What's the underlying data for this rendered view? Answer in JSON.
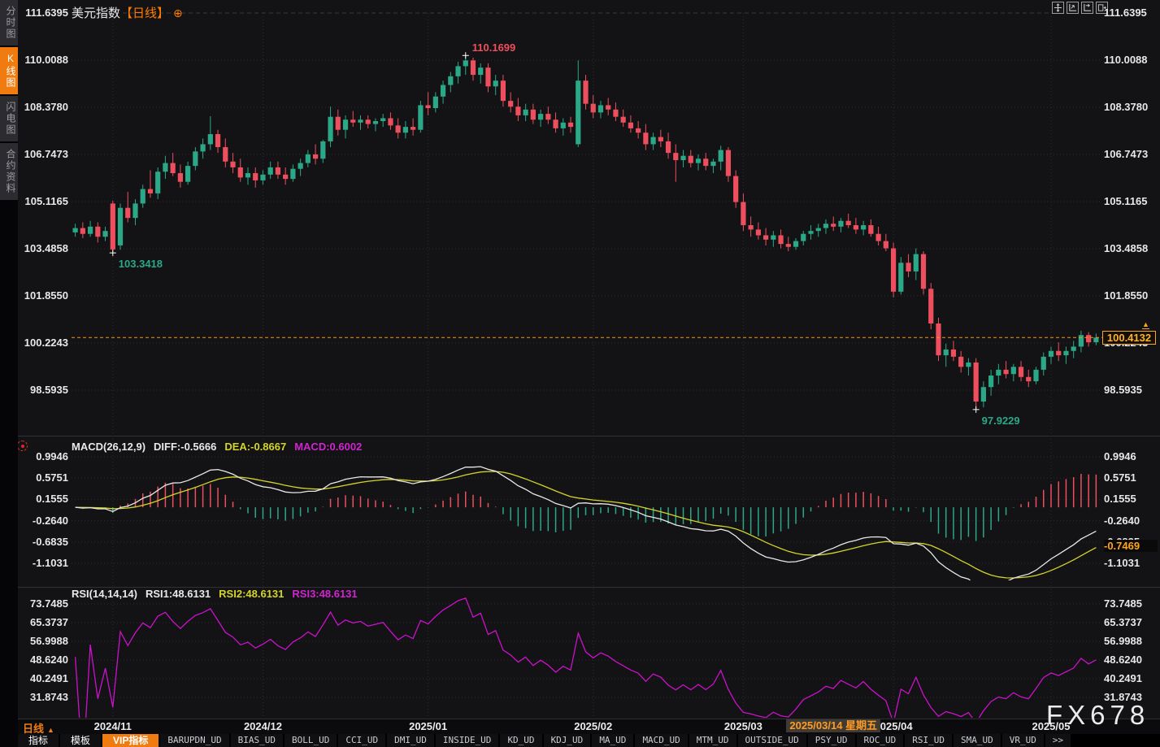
{
  "title": {
    "symbol": "美元指数",
    "period_tag": "【日线】",
    "add_icon": "⊕"
  },
  "sidebar": {
    "items": [
      {
        "label": "分时图"
      },
      {
        "label": "K线图"
      },
      {
        "label": "闪电图"
      },
      {
        "label": "合约资料"
      }
    ],
    "active": "K线图"
  },
  "price_axis": {
    "labels": [
      "111.6395",
      "110.0088",
      "108.3780",
      "106.7473",
      "105.1165",
      "103.4858",
      "101.8550",
      "100.2243",
      "98.5935"
    ]
  },
  "price_tag": {
    "value": "100.4132"
  },
  "annotations": {
    "high": "110.1699",
    "low_start": "103.3418",
    "low_min": "97.9229"
  },
  "macd_panel": {
    "name": "MACD(26,12,9)",
    "diff": "DIFF:-0.5666",
    "dea": "DEA:-0.8667",
    "macd": "MACD:0.6002",
    "axis": [
      "0.9946",
      "0.5751",
      "0.1555",
      "-0.2640",
      "-0.6835",
      "-1.1031"
    ],
    "current": "-0.7469"
  },
  "rsi_panel": {
    "name": "RSI(14,14,14)",
    "rsi1": "RSI1:48.6131",
    "rsi2": "RSI2:48.6131",
    "rsi3": "RSI3:48.6131",
    "axis": [
      "73.7485",
      "65.3737",
      "56.9988",
      "48.6240",
      "40.2491",
      "31.8743"
    ]
  },
  "xaxis": {
    "period": "日线",
    "period_arrow": "▲",
    "months": [
      "2024/11",
      "2024/12",
      "2025/01",
      "2025/02",
      "2025/03",
      "2025/04",
      "2025/05"
    ],
    "selected_date": "2025/03/14 星期五"
  },
  "toolbar": {
    "tabs": [
      {
        "label": "指标"
      },
      {
        "label": "模板"
      },
      {
        "label": "VIP指标",
        "active": true
      }
    ],
    "indicators": [
      "BARUPDN_UD",
      "BIAS_UD",
      "BOLL_UD",
      "CCI_UD",
      "DMI_UD",
      "INSIDE_UD",
      "KD_UD",
      "KDJ_UD",
      "MA_UD",
      "MACD_UD",
      "MTM_UD",
      "OUTSIDE_UD",
      "PSY_UD",
      "ROC_UD",
      "RSI_UD",
      "SMA_UD",
      "VR_UD"
    ],
    "more": ">>"
  },
  "watermark": "FX678",
  "icons": {
    "pin": "▲"
  },
  "colors": {
    "up": "#2BA888",
    "down": "#EE4F5E",
    "accent_orange": "#F7941D",
    "tag_orange": "#FFA21C",
    "dea_yellow": "#D4D42A",
    "macd_magenta": "#D024D0",
    "diff_white": "#E8E8E8",
    "rsi_magenta": "#CC10CC",
    "grid": "#2D2D30",
    "text": "#E8E8E8"
  },
  "chart_data": {
    "type": "candlestick",
    "title": "美元指数 日线",
    "price_axis_values": [
      111.6395,
      110.0088,
      108.378,
      106.7473,
      105.1165,
      103.4858,
      101.855,
      100.2243,
      98.5935
    ],
    "macd_axis_values": [
      0.9946,
      0.5751,
      0.1555,
      -0.264,
      -0.6835,
      -1.1031
    ],
    "rsi_axis_values": [
      73.7485,
      65.3737,
      56.9988,
      48.624,
      40.2491,
      31.8743
    ],
    "current_price": 100.4132,
    "current_macd": -0.7469,
    "high_point": {
      "index": 52,
      "value": 110.1699
    },
    "low_start_point": {
      "index": 5,
      "value": 103.3418
    },
    "low_point": {
      "index": 120,
      "value": 97.9229
    },
    "month_tick_indices": [
      5,
      25,
      47,
      69,
      89,
      109,
      130
    ],
    "selected_tick_index": 101,
    "macd_params": {
      "fast": 12,
      "slow": 26,
      "signal": 9
    },
    "rsi_period": 14,
    "candles": [
      [
        104.05,
        104.35,
        103.9,
        104.2
      ],
      [
        104.2,
        104.4,
        103.85,
        104.0
      ],
      [
        104.0,
        104.45,
        103.9,
        104.25
      ],
      [
        104.25,
        104.4,
        103.7,
        103.9
      ],
      [
        103.9,
        104.25,
        103.75,
        104.1
      ],
      [
        105.05,
        105.15,
        103.342,
        103.46
      ],
      [
        103.6,
        105.05,
        103.45,
        104.9
      ],
      [
        104.9,
        105.45,
        104.4,
        104.55
      ],
      [
        104.55,
        105.2,
        104.3,
        105.05
      ],
      [
        105.05,
        105.7,
        104.9,
        105.55
      ],
      [
        105.55,
        106.2,
        105.25,
        105.4
      ],
      [
        105.4,
        106.3,
        105.2,
        106.15
      ],
      [
        106.15,
        106.7,
        105.9,
        106.45
      ],
      [
        106.45,
        106.8,
        106.0,
        106.1
      ],
      [
        106.1,
        106.4,
        105.6,
        105.8
      ],
      [
        105.8,
        106.5,
        105.7,
        106.35
      ],
      [
        106.35,
        107.0,
        106.2,
        106.85
      ],
      [
        106.85,
        107.3,
        106.6,
        107.1
      ],
      [
        107.1,
        108.07,
        106.9,
        107.45
      ],
      [
        107.45,
        107.6,
        106.8,
        107.0
      ],
      [
        107.0,
        107.3,
        106.3,
        106.5
      ],
      [
        106.5,
        106.8,
        106.1,
        106.3
      ],
      [
        106.3,
        106.6,
        105.8,
        105.95
      ],
      [
        105.95,
        106.3,
        105.7,
        106.1
      ],
      [
        106.1,
        106.3,
        105.6,
        105.85
      ],
      [
        105.85,
        106.2,
        105.7,
        106.05
      ],
      [
        106.05,
        106.5,
        105.9,
        106.3
      ],
      [
        106.3,
        106.5,
        105.9,
        106.05
      ],
      [
        106.05,
        106.3,
        105.7,
        105.9
      ],
      [
        105.9,
        106.4,
        105.8,
        106.25
      ],
      [
        106.25,
        106.6,
        106.0,
        106.45
      ],
      [
        106.45,
        106.9,
        106.3,
        106.75
      ],
      [
        106.75,
        107.1,
        106.4,
        106.6
      ],
      [
        106.6,
        107.25,
        106.45,
        107.2
      ],
      [
        107.2,
        108.4,
        107.0,
        108.05
      ],
      [
        108.05,
        108.3,
        107.4,
        107.6
      ],
      [
        107.6,
        108.1,
        107.3,
        107.95
      ],
      [
        107.95,
        108.25,
        107.7,
        107.85
      ],
      [
        107.85,
        108.1,
        107.6,
        107.95
      ],
      [
        107.95,
        108.1,
        107.65,
        107.8
      ],
      [
        107.8,
        108.0,
        107.55,
        107.9
      ],
      [
        107.9,
        108.15,
        107.7,
        108.0
      ],
      [
        108.0,
        108.2,
        107.6,
        107.75
      ],
      [
        107.75,
        108.0,
        107.3,
        107.5
      ],
      [
        107.5,
        107.9,
        107.3,
        107.7
      ],
      [
        107.7,
        108.0,
        107.4,
        107.6
      ],
      [
        107.6,
        108.6,
        107.5,
        108.45
      ],
      [
        108.45,
        108.9,
        108.1,
        108.35
      ],
      [
        108.35,
        108.9,
        108.2,
        108.75
      ],
      [
        108.75,
        109.3,
        108.5,
        109.15
      ],
      [
        109.15,
        109.6,
        108.9,
        109.45
      ],
      [
        109.45,
        109.95,
        109.2,
        109.8
      ],
      [
        109.8,
        110.17,
        109.5,
        110.0
      ],
      [
        110.0,
        110.1,
        109.3,
        109.5
      ],
      [
        109.5,
        109.9,
        109.2,
        109.75
      ],
      [
        109.75,
        109.9,
        108.9,
        109.1
      ],
      [
        109.1,
        109.5,
        108.8,
        109.3
      ],
      [
        109.3,
        109.5,
        108.4,
        108.6
      ],
      [
        108.6,
        108.9,
        108.2,
        108.4
      ],
      [
        108.4,
        108.7,
        107.9,
        108.1
      ],
      [
        108.1,
        108.5,
        107.9,
        108.3
      ],
      [
        108.3,
        108.5,
        107.8,
        107.95
      ],
      [
        107.95,
        108.3,
        107.7,
        108.15
      ],
      [
        108.15,
        108.4,
        107.8,
        107.95
      ],
      [
        107.95,
        108.2,
        107.5,
        107.65
      ],
      [
        107.65,
        108.0,
        107.4,
        107.85
      ],
      [
        107.85,
        108.05,
        107.5,
        107.7
      ],
      [
        107.1,
        110.0,
        107.0,
        109.3
      ],
      [
        109.3,
        109.5,
        108.3,
        108.5
      ],
      [
        108.5,
        108.8,
        108.0,
        108.2
      ],
      [
        108.2,
        108.6,
        108.0,
        108.45
      ],
      [
        108.45,
        108.7,
        108.1,
        108.3
      ],
      [
        108.3,
        108.55,
        107.9,
        108.05
      ],
      [
        108.05,
        108.3,
        107.7,
        107.85
      ],
      [
        107.85,
        108.1,
        107.5,
        107.65
      ],
      [
        107.65,
        107.9,
        107.3,
        107.5
      ],
      [
        107.5,
        107.8,
        106.9,
        107.1
      ],
      [
        107.1,
        107.5,
        106.9,
        107.35
      ],
      [
        107.35,
        107.6,
        107.0,
        107.2
      ],
      [
        107.2,
        107.5,
        106.6,
        106.8
      ],
      [
        106.8,
        107.1,
        105.8,
        106.55
      ],
      [
        106.55,
        106.9,
        106.3,
        106.7
      ],
      [
        106.7,
        106.9,
        106.3,
        106.45
      ],
      [
        106.45,
        106.75,
        106.2,
        106.6
      ],
      [
        106.6,
        106.8,
        106.2,
        106.35
      ],
      [
        106.35,
        106.6,
        106.1,
        106.5
      ],
      [
        106.5,
        107.05,
        106.2,
        106.9
      ],
      [
        106.9,
        107.0,
        105.8,
        106.0
      ],
      [
        106.0,
        106.2,
        104.9,
        105.1
      ],
      [
        105.1,
        105.4,
        104.1,
        104.3
      ],
      [
        104.3,
        104.6,
        103.9,
        104.15
      ],
      [
        104.15,
        104.4,
        103.8,
        103.95
      ],
      [
        103.95,
        104.2,
        103.6,
        103.8
      ],
      [
        103.8,
        104.1,
        103.55,
        103.95
      ],
      [
        103.95,
        104.15,
        103.5,
        103.65
      ],
      [
        103.65,
        103.9,
        103.4,
        103.55
      ],
      [
        103.55,
        103.85,
        103.45,
        103.75
      ],
      [
        103.75,
        104.1,
        103.6,
        104.0
      ],
      [
        104.0,
        104.3,
        103.8,
        104.1
      ],
      [
        104.1,
        104.35,
        103.9,
        104.2
      ],
      [
        104.2,
        104.5,
        104.0,
        104.35
      ],
      [
        104.35,
        104.6,
        104.1,
        104.25
      ],
      [
        104.25,
        104.55,
        104.05,
        104.45
      ],
      [
        104.45,
        104.7,
        104.2,
        104.3
      ],
      [
        104.3,
        104.55,
        104.0,
        104.15
      ],
      [
        104.15,
        104.45,
        103.95,
        104.3
      ],
      [
        104.3,
        104.5,
        103.9,
        104.0
      ],
      [
        104.0,
        104.25,
        103.6,
        103.75
      ],
      [
        103.75,
        104.0,
        103.4,
        103.5
      ],
      [
        103.5,
        103.7,
        101.8,
        102.0
      ],
      [
        102.0,
        103.2,
        101.9,
        103.0
      ],
      [
        103.0,
        103.3,
        102.5,
        102.7
      ],
      [
        102.7,
        103.5,
        102.4,
        103.3
      ],
      [
        103.3,
        103.4,
        101.9,
        102.1
      ],
      [
        102.1,
        102.3,
        100.7,
        100.9
      ],
      [
        100.9,
        101.1,
        99.6,
        99.8
      ],
      [
        99.8,
        100.2,
        99.4,
        100.0
      ],
      [
        100.0,
        100.3,
        99.6,
        99.75
      ],
      [
        99.75,
        99.95,
        99.2,
        99.4
      ],
      [
        99.4,
        99.7,
        99.1,
        99.55
      ],
      [
        99.55,
        99.7,
        97.923,
        98.2
      ],
      [
        98.2,
        98.9,
        98.0,
        98.7
      ],
      [
        98.7,
        99.3,
        98.4,
        99.1
      ],
      [
        99.1,
        99.5,
        98.8,
        99.3
      ],
      [
        99.3,
        99.6,
        99.0,
        99.15
      ],
      [
        99.15,
        99.5,
        98.9,
        99.4
      ],
      [
        99.4,
        99.6,
        98.9,
        99.05
      ],
      [
        99.05,
        99.3,
        98.7,
        98.9
      ],
      [
        98.9,
        99.4,
        98.8,
        99.3
      ],
      [
        99.3,
        99.9,
        99.1,
        99.75
      ],
      [
        99.75,
        100.1,
        99.5,
        99.95
      ],
      [
        99.95,
        100.25,
        99.6,
        99.8
      ],
      [
        99.8,
        100.1,
        99.5,
        99.95
      ],
      [
        99.95,
        100.3,
        99.7,
        100.1
      ],
      [
        100.1,
        100.65,
        99.9,
        100.5
      ],
      [
        100.5,
        100.6,
        100.1,
        100.25
      ],
      [
        100.25,
        100.55,
        100.15,
        100.4132
      ]
    ]
  }
}
